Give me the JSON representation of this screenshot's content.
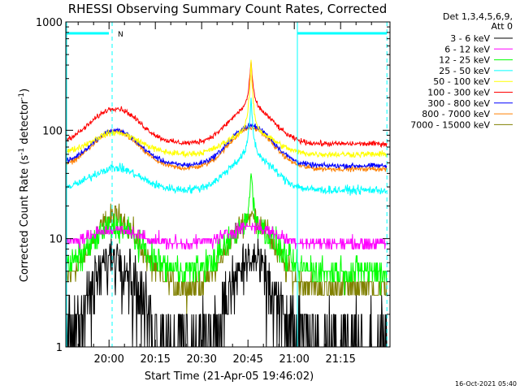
{
  "chart_data": {
    "type": "line",
    "title": "RHESSI Observing Summary Count Rates, Corrected",
    "xlabel": "Start Time (21-Apr-05 19:46:02)",
    "ylabel_main": "Corrected Count Rate (s",
    "ylabel_sup1": "-1",
    "ylabel_mid": " detector",
    "ylabel_sup2": "-1",
    "ylabel_end": ")",
    "y_scale": "log",
    "ylim": [
      1,
      1000
    ],
    "xlim_minutes": [
      -14,
      91
    ],
    "x_ticks": [
      {
        "m": 0,
        "label": "20:00"
      },
      {
        "m": 15,
        "label": "20:15"
      },
      {
        "m": 30,
        "label": "20:30"
      },
      {
        "m": 45,
        "label": "20:45"
      },
      {
        "m": 60,
        "label": "21:00"
      },
      {
        "m": 75,
        "label": "21:15"
      }
    ],
    "y_ticks": [
      {
        "v": 1,
        "label": "1"
      },
      {
        "v": 10,
        "label": "10"
      },
      {
        "v": 100,
        "label": "100"
      },
      {
        "v": 1000,
        "label": "1000"
      }
    ],
    "legend_header": [
      "Det 1,3,4,5,6,9,",
      "Att 0"
    ],
    "timestamp": "16-Oct-2021 05:40",
    "night_bar": {
      "label": "N",
      "start_m": -14,
      "end_m": 1
    },
    "night_bar2": {
      "start_m": 61,
      "end_m": 90
    },
    "vlines_m": [
      1,
      61,
      90
    ],
    "series": [
      {
        "name": "3 - 6 keV",
        "color": "#000000",
        "base": 1,
        "peak": 7,
        "peak2": 6.5,
        "noise": 0.35,
        "spike": 0
      },
      {
        "name": "6 - 12 keV",
        "color": "#ff00ff",
        "base": 9,
        "peak": 12,
        "peak2": 13,
        "noise": 0.06,
        "spike": 0
      },
      {
        "name": "12 - 25 keV",
        "color": "#00ff00",
        "base": 5,
        "peak": 13,
        "peak2": 14,
        "noise": 0.14,
        "spike": 1.4
      },
      {
        "name": "25 - 50 keV",
        "color": "#00ffff",
        "base": 28,
        "peak": 45,
        "peak2": 60,
        "noise": 0.04,
        "spike": 1.8
      },
      {
        "name": "50 - 100 keV",
        "color": "#ffff00",
        "base": 60,
        "peak": 95,
        "peak2": 100,
        "noise": 0.03,
        "spike": 2.5
      },
      {
        "name": "100 - 300 keV",
        "color": "#ff0000",
        "base": 75,
        "peak": 160,
        "peak2": 165,
        "noise": 0.025,
        "spike": 1.3
      },
      {
        "name": "300 - 800 keV",
        "color": "#0000ff",
        "base": 47,
        "peak": 100,
        "peak2": 110,
        "noise": 0.025,
        "spike": 0
      },
      {
        "name": "800 - 7000 keV",
        "color": "#ff8000",
        "base": 44,
        "peak": 97,
        "peak2": 105,
        "noise": 0.025,
        "spike": 0
      },
      {
        "name": "7000 - 15000 keV",
        "color": "#808000",
        "base": 3.5,
        "peak": 16,
        "peak2": 16,
        "noise": 0.12,
        "spike": 0
      }
    ]
  }
}
